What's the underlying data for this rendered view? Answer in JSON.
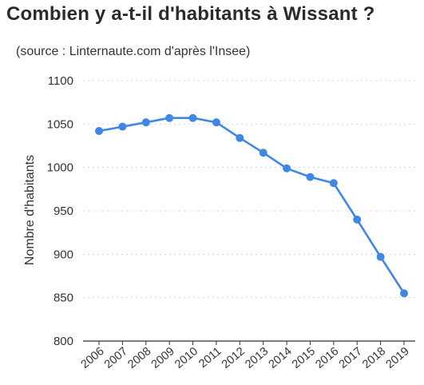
{
  "chart_data": {
    "type": "line",
    "title": "Combien y a-t-il d'habitants à Wissant ?",
    "subtitle": "(source : Linternaute.com d'après l'Insee)",
    "xlabel": "",
    "ylabel": "Nombre d'habitants",
    "ylim": [
      800,
      1100
    ],
    "yticks": [
      800,
      850,
      900,
      950,
      1000,
      1050,
      1100
    ],
    "grid": true,
    "categories": [
      "2006",
      "2007",
      "2008",
      "2009",
      "2010",
      "2011",
      "2012",
      "2013",
      "2014",
      "2015",
      "2016",
      "2017",
      "2018",
      "2019"
    ],
    "series": [
      {
        "values": [
          1042,
          1047,
          1052,
          1057,
          1057,
          1052,
          1034,
          1017,
          999,
          989,
          982,
          940,
          897,
          855
        ],
        "color": "#3f86e6"
      }
    ],
    "colors": {
      "line": "#3f86e6",
      "grid": "#d8d8d8",
      "axis": "#333333"
    }
  }
}
